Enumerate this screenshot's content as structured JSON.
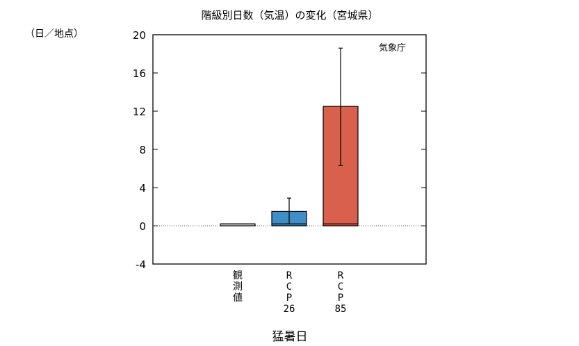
{
  "chart_data": {
    "type": "bar",
    "title": "階級別日数（気温）の変化（宮城県）",
    "ylabel": "（日／地点）",
    "xlabel": "猛暑日",
    "source": "気象庁",
    "ylim": [
      -4,
      20
    ],
    "yticks": [
      "20",
      "16",
      "12",
      "8",
      "4",
      "0",
      "-4"
    ],
    "grid": false,
    "categories": [
      {
        "label": [
          "観",
          "測",
          "値"
        ]
      },
      {
        "label": [
          "R",
          "C",
          "P",
          "26"
        ]
      },
      {
        "label": [
          "R",
          "C",
          "P",
          "85"
        ]
      }
    ],
    "values": [
      0.2,
      1.5,
      12.5
    ],
    "baseline_values": [
      0.2,
      0.2,
      0.2
    ],
    "error_low": [
      null,
      0.2,
      6.3
    ],
    "error_high": [
      null,
      2.9,
      18.6
    ],
    "colors": [
      "#e8e8e8",
      "#3f8fc6",
      "#d9604d"
    ]
  }
}
